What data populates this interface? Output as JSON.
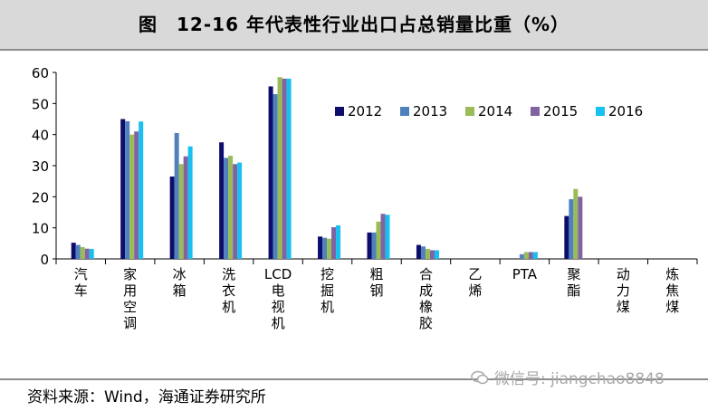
{
  "title": "图　12-16 年代表性行业出口占总销量比重（%）",
  "source": "资料来源：Wind，海通证券研究所",
  "watermark": "微信号: jiangchao8848",
  "chart_data": {
    "type": "bar",
    "categories": [
      "汽车",
      "家用空调",
      "冰箱",
      "洗衣机",
      "LCD电视机",
      "挖掘机",
      "粗钢",
      "合成橡胶",
      "乙烯",
      "PTA",
      "聚酯",
      "动力煤",
      "炼焦煤"
    ],
    "series": [
      {
        "name": "2012",
        "color": "#0d0d6b",
        "values": [
          5.2,
          45,
          26.5,
          37.5,
          55.5,
          7.2,
          8.5,
          4.5,
          0,
          0,
          13.8,
          0,
          0
        ]
      },
      {
        "name": "2013",
        "color": "#4f81bd",
        "values": [
          4.5,
          44.3,
          40.5,
          32.5,
          53,
          6.8,
          8.5,
          4,
          0,
          1.5,
          19.2,
          0,
          0
        ]
      },
      {
        "name": "2014",
        "color": "#9bbb59",
        "values": [
          3.8,
          40,
          30.5,
          33.2,
          58.5,
          6.5,
          12,
          3.2,
          0,
          2.2,
          22.5,
          0,
          0
        ]
      },
      {
        "name": "2015",
        "color": "#8064a2",
        "values": [
          3.3,
          41,
          33,
          30.5,
          58,
          10.2,
          14.5,
          2.8,
          0,
          2.2,
          20,
          0,
          0
        ]
      },
      {
        "name": "2016",
        "color": "#17c0f0",
        "values": [
          3.2,
          44.2,
          36.2,
          31,
          58,
          10.8,
          14.2,
          2.8,
          0,
          2.2,
          0,
          0,
          0
        ]
      }
    ],
    "ylim": [
      0,
      60
    ],
    "yticks": [
      0,
      10,
      20,
      30,
      40,
      50,
      60
    ],
    "grid": false,
    "legend_position": "top-right"
  }
}
